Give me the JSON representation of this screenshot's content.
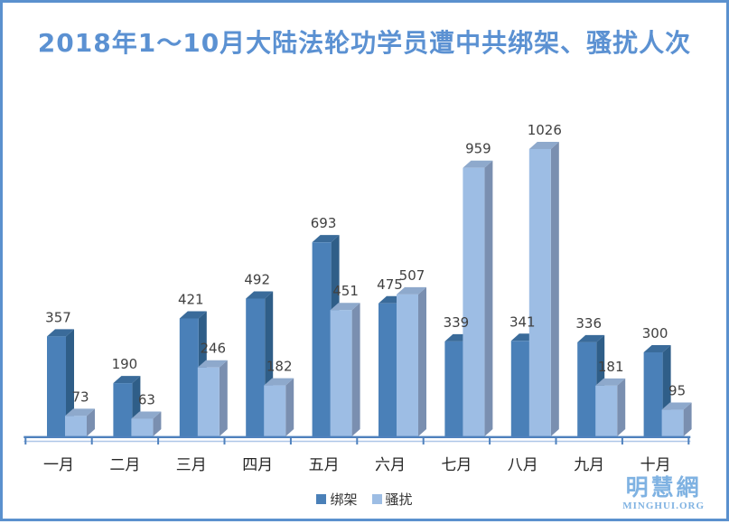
{
  "title": "2018年1～10月大陆法轮功学员遭中共绑架、骚扰人次",
  "colors": {
    "frame_border": "#5B91CE",
    "title": "#5B91D2",
    "axis_line": "#4F81BD",
    "axis_line_light": "#AEC6E8",
    "value_label": "#404040",
    "month_label": "#262626",
    "series1_face": "#4A80B8",
    "series1_top": "#3A6B9A",
    "series1_side": "#2F5E88",
    "series2_face": "#9DBDE4",
    "series2_top": "#8EA9CC",
    "series2_side": "#7A8FB0",
    "logo": "#7FB2E2"
  },
  "chart_data": {
    "type": "bar",
    "style": "3d-clustered",
    "title": "2018年1～10月大陆法轮功学员遭中共绑架、骚扰人次",
    "categories": [
      "一月",
      "二月",
      "三月",
      "四月",
      "五月",
      "六月",
      "七月",
      "八月",
      "九月",
      "十月"
    ],
    "series": [
      {
        "name": "绑架",
        "color": "#4A80B8",
        "values": [
          357,
          190,
          421,
          492,
          693,
          475,
          339,
          341,
          336,
          300
        ]
      },
      {
        "name": "骚扰",
        "color": "#9DBDE4",
        "values": [
          73,
          63,
          246,
          182,
          451,
          507,
          959,
          1026,
          181,
          95
        ]
      }
    ],
    "xlabel": "",
    "ylabel": "",
    "ylim": [
      0,
      1100
    ],
    "grid": false,
    "data_labels": true,
    "legend_position": "bottom-center"
  },
  "legend": {
    "items": [
      {
        "label": "绑架",
        "color": "#4A80B8"
      },
      {
        "label": "骚扰",
        "color": "#9DBDE4"
      }
    ]
  },
  "logo": {
    "name": "明慧網",
    "domain": "MINGHUI.ORG"
  }
}
